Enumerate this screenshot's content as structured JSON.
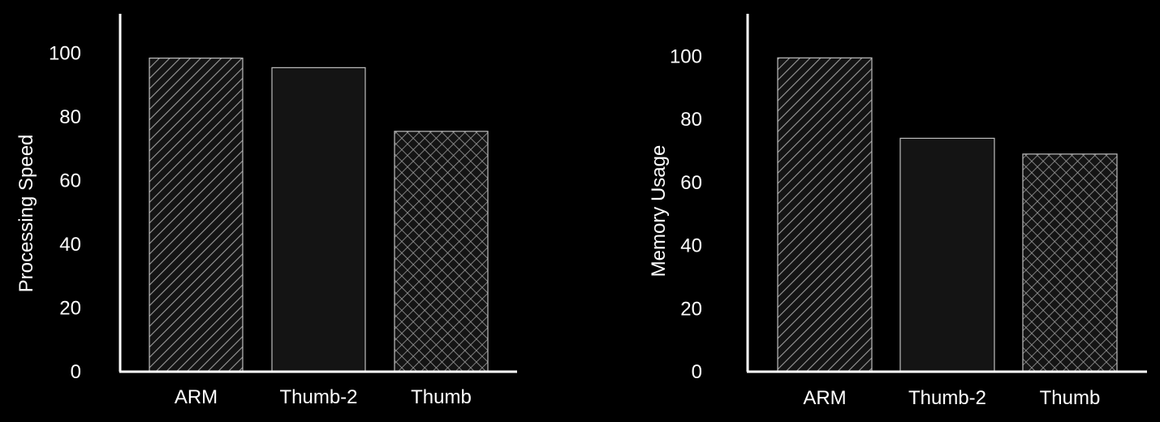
{
  "chart_data": [
    {
      "type": "bar",
      "categories": [
        "ARM",
        "Thumb-2",
        "Thumb"
      ],
      "values": [
        98.5,
        95.5,
        75.5
      ],
      "patterns": [
        "diagonal",
        "solid",
        "crosshatch"
      ],
      "ylabel": "Processing Speed",
      "xlabel": "",
      "ylim": [
        0,
        110
      ],
      "yticks": [
        "0",
        "20",
        "40",
        "60",
        "80",
        "100"
      ],
      "grid": false
    },
    {
      "type": "bar",
      "categories": [
        "ARM",
        "Thumb-2",
        "Thumb"
      ],
      "values": [
        99.5,
        74,
        69
      ],
      "patterns": [
        "diagonal",
        "solid",
        "crosshatch"
      ],
      "ylabel": "Memory Usage",
      "xlabel": "",
      "ylim": [
        0,
        110
      ],
      "yticks": [
        "0",
        "20",
        "40",
        "60",
        "80",
        "100"
      ],
      "grid": false
    }
  ],
  "colors": {
    "background": "#000000",
    "axis": "#ffffff",
    "bar_fill": "#141414",
    "bar_stroke": "#bdbdbd",
    "pattern_line": "#9a9a9a",
    "text": "#ffffff"
  }
}
